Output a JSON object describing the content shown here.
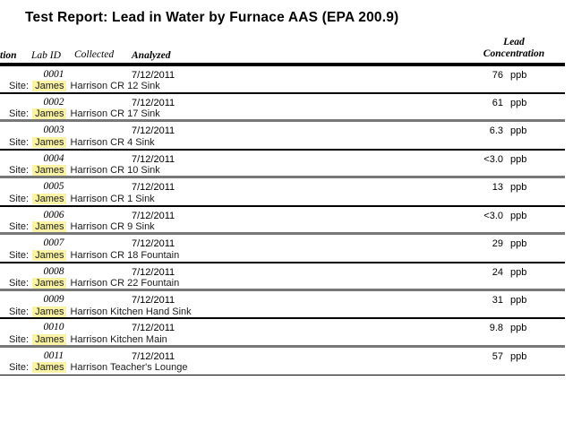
{
  "title": "Test Report: Lead in Water by Furnace AAS (EPA 200.9)",
  "columns": {
    "location_partial": "tion",
    "lab_id": "Lab ID",
    "collected": "Collected",
    "analyzed": "Analyzed",
    "concentration_line1": "Lead",
    "concentration_line2": "Concentration"
  },
  "site_prefix": "Site:",
  "unit": "ppb",
  "highlight_color": "#faf3a6",
  "highlighted_name": "James",
  "rows": [
    {
      "lab_id": "0001",
      "analyzed": "7/12/2011",
      "value": "76",
      "site_name": "James",
      "site_rest": "Harrison CR 12 Sink",
      "separator": "black"
    },
    {
      "lab_id": "0002",
      "analyzed": "7/12/2011",
      "value": "61",
      "site_name": "James",
      "site_rest": "Harrison CR 17 Sink",
      "separator": "gray"
    },
    {
      "lab_id": "0003",
      "analyzed": "7/12/2011",
      "value": "6.3",
      "site_name": "James",
      "site_rest": "Harrison CR 4 Sink",
      "separator": "black"
    },
    {
      "lab_id": "0004",
      "analyzed": "7/12/2011",
      "value": "<3.0",
      "site_name": "James",
      "site_rest": "Harrison CR 10 Sink",
      "separator": "gray"
    },
    {
      "lab_id": "0005",
      "analyzed": "7/12/2011",
      "value": "13",
      "site_name": "James",
      "site_rest": "Harrison CR 1 Sink",
      "separator": "black"
    },
    {
      "lab_id": "0006",
      "analyzed": "7/12/2011",
      "value": "<3.0",
      "site_name": "James",
      "site_rest": "Harrison CR 9 Sink",
      "separator": "gray"
    },
    {
      "lab_id": "0007",
      "analyzed": "7/12/2011",
      "value": "29",
      "site_name": "James",
      "site_rest": "Harrison CR 18 Fountain",
      "separator": "black"
    },
    {
      "lab_id": "0008",
      "analyzed": "7/12/2011",
      "value": "24",
      "site_name": "James",
      "site_rest": "Harrison CR 22 Fountain",
      "separator": "gray"
    },
    {
      "lab_id": "0009",
      "analyzed": "7/12/2011",
      "value": "31",
      "site_name": "James",
      "site_rest": "Harrison Kitchen Hand Sink",
      "separator": "black"
    },
    {
      "lab_id": "0010",
      "analyzed": "7/12/2011",
      "value": "9.8",
      "site_name": "James",
      "site_rest": "Harrison Kitchen Main",
      "separator": "gray"
    },
    {
      "lab_id": "0011",
      "analyzed": "7/12/2011",
      "value": "57",
      "site_name": "James",
      "site_rest": "Harrison Teacher's Lounge",
      "separator": "final"
    }
  ]
}
